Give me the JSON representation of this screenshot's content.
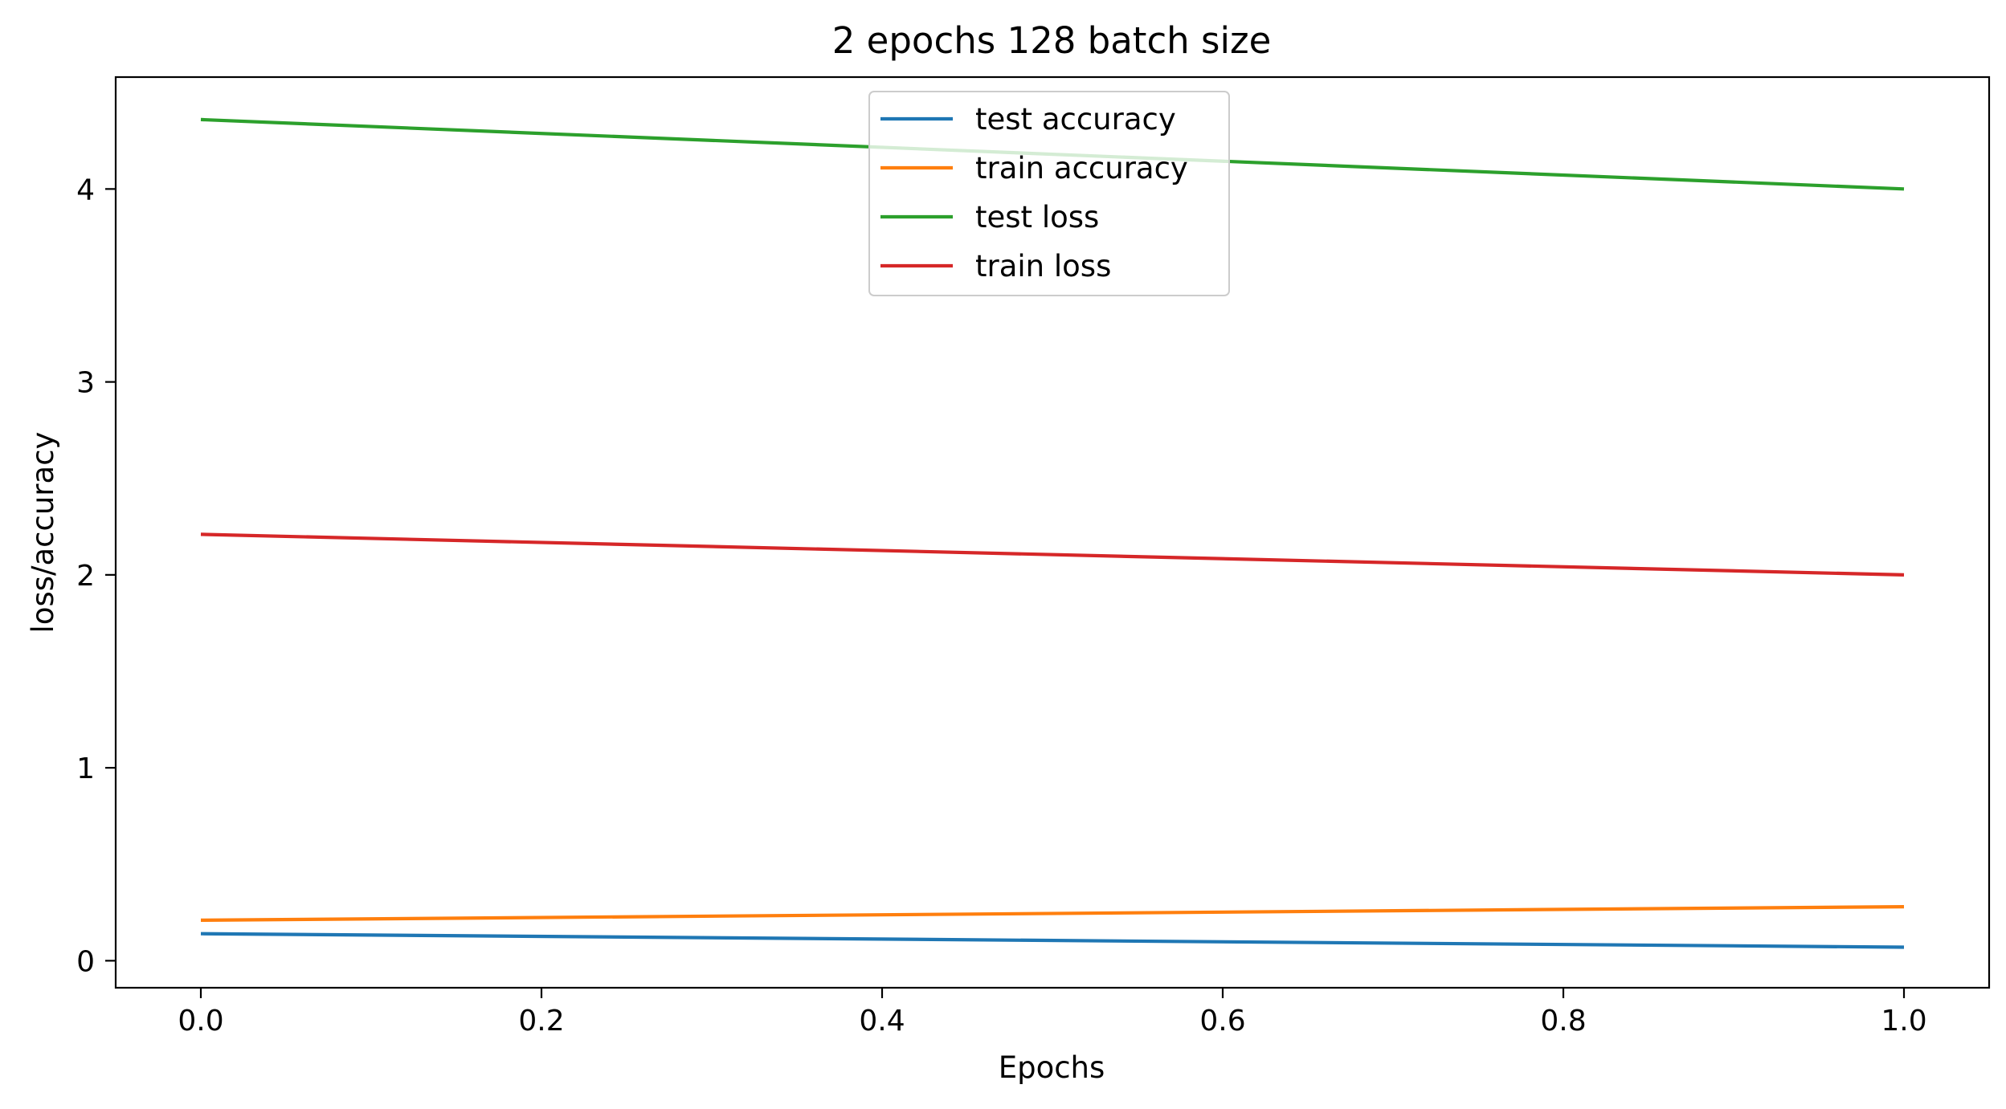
{
  "chart_data": {
    "type": "line",
    "title": "2 epochs 128 batch size",
    "xlabel": "Epochs",
    "ylabel": "loss/accuracy",
    "x": [
      0.0,
      1.0
    ],
    "xlim": [
      -0.05,
      1.05
    ],
    "ylim": [
      -0.14,
      4.58
    ],
    "xticks": [
      0.0,
      0.2,
      0.4,
      0.6,
      0.8,
      1.0
    ],
    "xtick_labels": [
      "0.0",
      "0.2",
      "0.4",
      "0.6",
      "0.8",
      "1.0"
    ],
    "yticks": [
      0,
      1,
      2,
      3,
      4
    ],
    "ytick_labels": [
      "0",
      "1",
      "2",
      "3",
      "4"
    ],
    "grid": false,
    "legend_position": "upper-center",
    "series": [
      {
        "name": "test accuracy",
        "color": "#1f77b4",
        "values": [
          0.14,
          0.07
        ]
      },
      {
        "name": "train accuracy",
        "color": "#ff7f0e",
        "values": [
          0.21,
          0.28
        ]
      },
      {
        "name": "test loss",
        "color": "#2ca02c",
        "values": [
          4.36,
          4.0
        ]
      },
      {
        "name": "train loss",
        "color": "#d62728",
        "values": [
          2.21,
          2.0
        ]
      }
    ]
  }
}
